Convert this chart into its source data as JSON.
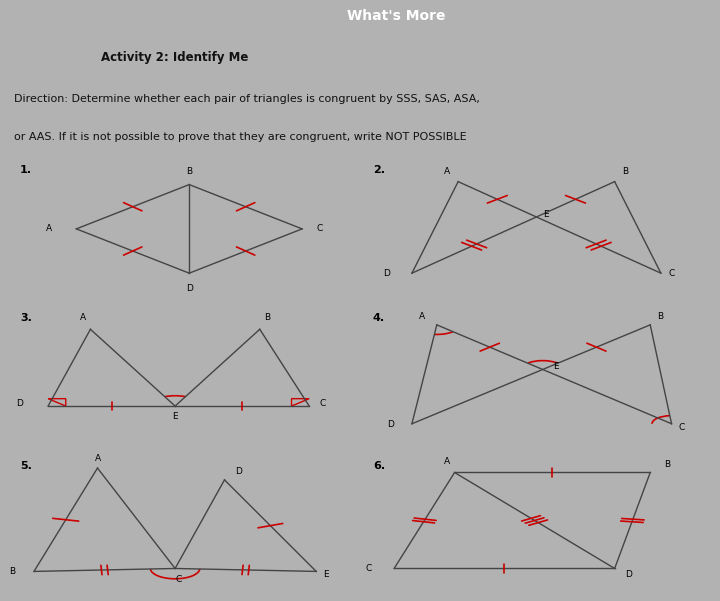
{
  "title_activity": "Activity 2: Identify Me",
  "direction_line1": "Direction: Determine whether each pair of triangles is congruent by SSS, SAS, ASA,",
  "direction_line2": "or AAS. If it is not possible to prove that they are congruent, write NOT POSSIBLE",
  "bg_color": "#b2b2b2",
  "cell_bg": "#b2b2b2",
  "header_bg": "#111111",
  "line_color": "#444444",
  "tick_color": "#cc0000",
  "text_color": "#111111",
  "white": "#ffffff"
}
